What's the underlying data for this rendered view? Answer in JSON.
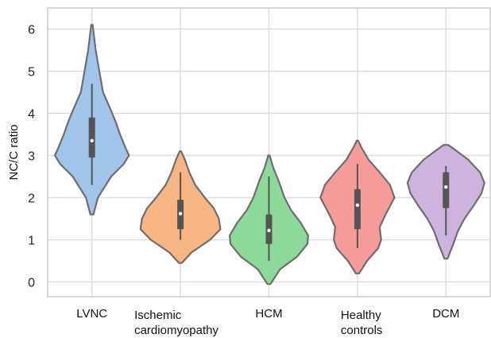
{
  "chart_data": {
    "type": "violin",
    "title": "",
    "xlabel": "",
    "ylabel": "NC/C ratio",
    "ylim": [
      -0.35,
      6.5
    ],
    "yticks": [
      0,
      1,
      2,
      3,
      4,
      5,
      6
    ],
    "grid": true,
    "legend": "none",
    "categories": [
      {
        "label": [
          "LVNC"
        ],
        "color": "#a1c4ea"
      },
      {
        "label": [
          "Ischemic",
          "cardiomyopathy"
        ],
        "color": "#f7b584"
      },
      {
        "label": [
          "HCM"
        ],
        "color": "#8dd99a"
      },
      {
        "label": [
          "Healthy",
          "controls"
        ],
        "color": "#f59c9a"
      },
      {
        "label": [
          "DCM"
        ],
        "color": "#cdb3de"
      }
    ],
    "violins": [
      {
        "min": 1.6,
        "max": 6.1,
        "whisker_low": 2.3,
        "whisker_high": 4.7,
        "q1": 2.95,
        "q3": 3.9,
        "median": 3.35,
        "profile": [
          [
            1.6,
            0.02
          ],
          [
            2.0,
            0.08
          ],
          [
            2.5,
            0.26
          ],
          [
            2.8,
            0.43
          ],
          [
            3.0,
            0.5
          ],
          [
            3.2,
            0.45
          ],
          [
            3.5,
            0.38
          ],
          [
            3.8,
            0.32
          ],
          [
            4.1,
            0.25
          ],
          [
            4.5,
            0.15
          ],
          [
            5.0,
            0.1
          ],
          [
            5.5,
            0.05
          ],
          [
            5.8,
            0.03
          ],
          [
            6.1,
            0.01
          ]
        ]
      },
      {
        "min": 0.45,
        "max": 3.1,
        "whisker_low": 1.0,
        "whisker_high": 2.6,
        "q1": 1.25,
        "q3": 1.95,
        "median": 1.62,
        "profile": [
          [
            0.45,
            0.02
          ],
          [
            0.7,
            0.15
          ],
          [
            1.0,
            0.4
          ],
          [
            1.25,
            0.54
          ],
          [
            1.5,
            0.52
          ],
          [
            1.75,
            0.45
          ],
          [
            2.0,
            0.33
          ],
          [
            2.3,
            0.2
          ],
          [
            2.6,
            0.12
          ],
          [
            2.9,
            0.06
          ],
          [
            3.1,
            0.01
          ]
        ]
      },
      {
        "min": -0.05,
        "max": 3.0,
        "whisker_low": 0.5,
        "whisker_high": 2.5,
        "q1": 0.9,
        "q3": 1.6,
        "median": 1.22,
        "profile": [
          [
            -0.05,
            0.02
          ],
          [
            0.3,
            0.15
          ],
          [
            0.6,
            0.38
          ],
          [
            0.9,
            0.52
          ],
          [
            1.1,
            0.53
          ],
          [
            1.4,
            0.43
          ],
          [
            1.7,
            0.3
          ],
          [
            2.0,
            0.21
          ],
          [
            2.4,
            0.13
          ],
          [
            2.7,
            0.06
          ],
          [
            3.0,
            0.01
          ]
        ]
      },
      {
        "min": 0.2,
        "max": 3.35,
        "whisker_low": 0.8,
        "whisker_high": 2.8,
        "q1": 1.25,
        "q3": 2.2,
        "median": 1.82,
        "profile": [
          [
            0.2,
            0.02
          ],
          [
            0.5,
            0.13
          ],
          [
            0.8,
            0.28
          ],
          [
            1.0,
            0.32
          ],
          [
            1.3,
            0.3
          ],
          [
            1.6,
            0.38
          ],
          [
            2.0,
            0.5
          ],
          [
            2.3,
            0.44
          ],
          [
            2.6,
            0.3
          ],
          [
            2.9,
            0.15
          ],
          [
            3.2,
            0.05
          ],
          [
            3.35,
            0.01
          ]
        ]
      },
      {
        "min": 0.55,
        "max": 3.25,
        "whisker_low": 1.1,
        "whisker_high": 2.75,
        "q1": 1.75,
        "q3": 2.6,
        "median": 2.25,
        "profile": [
          [
            0.55,
            0.02
          ],
          [
            0.9,
            0.1
          ],
          [
            1.2,
            0.16
          ],
          [
            1.5,
            0.25
          ],
          [
            1.8,
            0.37
          ],
          [
            2.1,
            0.48
          ],
          [
            2.35,
            0.52
          ],
          [
            2.6,
            0.46
          ],
          [
            2.9,
            0.3
          ],
          [
            3.1,
            0.15
          ],
          [
            3.25,
            0.03
          ]
        ]
      }
    ]
  }
}
